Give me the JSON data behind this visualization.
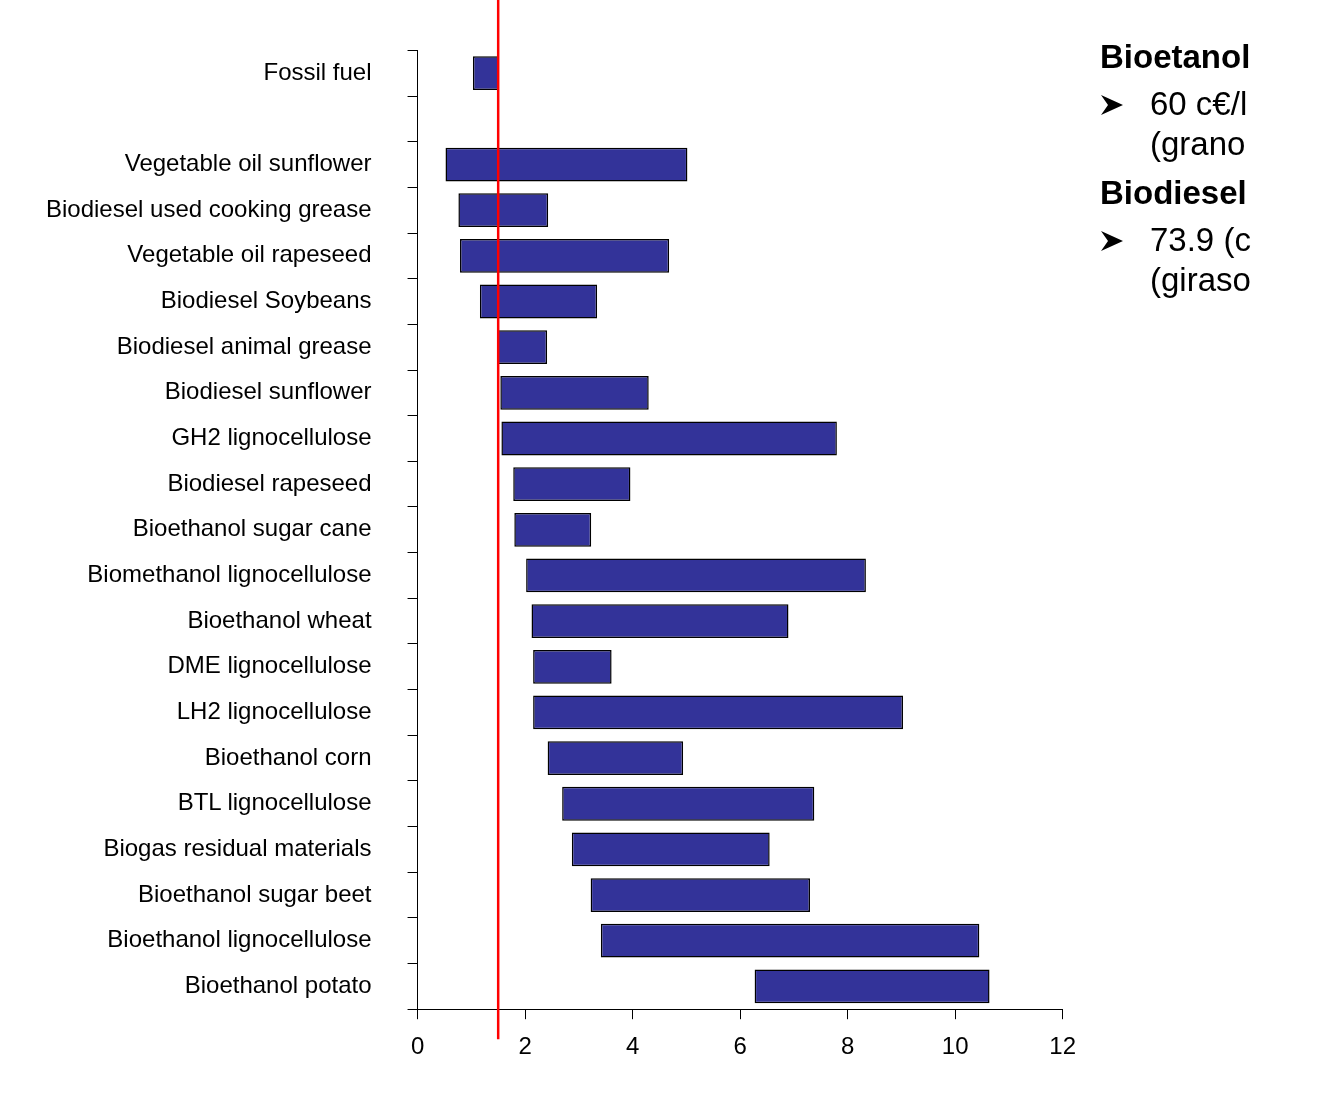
{
  "chart_data": {
    "type": "bar",
    "orientation": "horizontal",
    "categories": [
      "Fossil fuel",
      null,
      "Vegetable oil sunflower",
      "Biodiesel used cooking grease",
      "Vegetable oil rapeseed",
      "Biodiesel Soybeans",
      "Biodiesel animal grease",
      "Biodiesel sunflower",
      "GH2 lignocellulose",
      "Biodiesel rapeseed",
      "Bioethanol sugar cane",
      "Biomethanol lignocellulose",
      "Bioethanol wheat",
      "DME lignocellulose",
      "LH2 lignocellulose",
      "Bioethanol corn",
      "BTL lignocellulose",
      "Biogas residual materials",
      "Bioethanol sugar beet",
      "Bioethanol lignocellulose",
      "Bioethanol potato"
    ],
    "base": [
      1.03,
      null,
      0.52,
      0.76,
      0.79,
      1.16,
      1.48,
      1.54,
      1.56,
      1.78,
      1.8,
      2.02,
      2.12,
      2.15,
      2.15,
      2.42,
      2.69,
      2.87,
      3.22,
      3.41,
      6.27
    ],
    "values": [
      0.48,
      null,
      4.5,
      1.67,
      3.89,
      2.18,
      0.93,
      2.76,
      6.24,
      2.18,
      1.43,
      6.32,
      4.78,
      1.46,
      6.88,
      2.52,
      4.69,
      3.68,
      4.08,
      7.04,
      4.37
    ],
    "color": "#333399",
    "xlim": [
      0,
      12
    ],
    "xticks": [
      0,
      2,
      4,
      6,
      8,
      10,
      12
    ],
    "grid": false,
    "legend": false,
    "ref_lines": [
      {
        "axis": "x",
        "value": 1.5,
        "color": "#ff0000"
      }
    ],
    "annotations": [
      "Bioetanol",
      "60 c€/l\n(grano",
      "Biodiesel",
      "73.9 (c\n(giraso"
    ]
  }
}
